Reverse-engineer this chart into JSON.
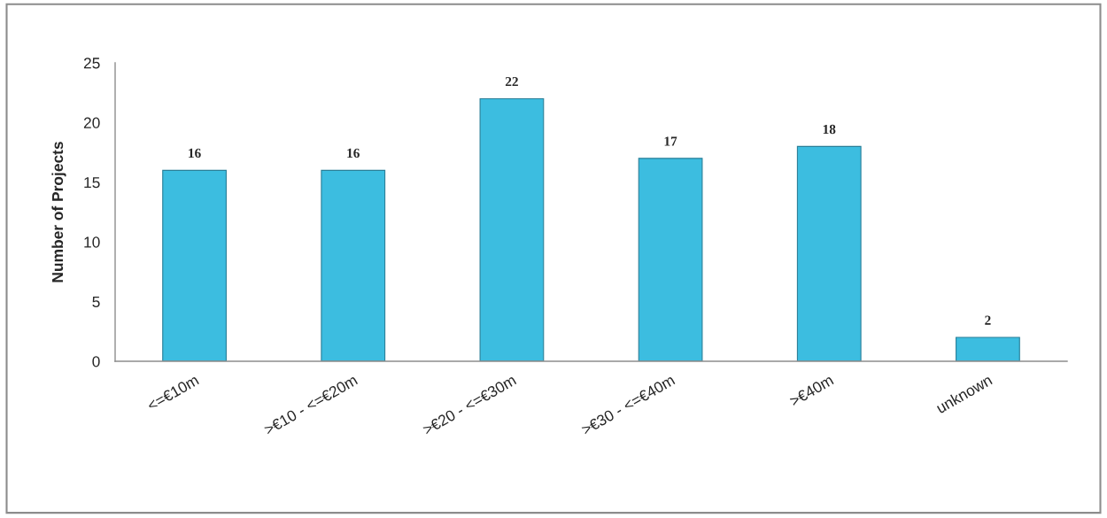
{
  "chart_data": {
    "type": "bar",
    "ylabel": "Number of Projects",
    "categories": [
      "<=€10m",
      ">€10 - <=€20m",
      ">€20 - <=€30m",
      ">€30 - <=€40m",
      ">€40m",
      "unknown"
    ],
    "values": [
      16,
      16,
      22,
      17,
      18,
      2
    ],
    "color": "#3cbde0",
    "ylim": [
      0,
      25
    ],
    "yticks": [
      0,
      5,
      10,
      15,
      20,
      25
    ],
    "data_labels": true
  }
}
